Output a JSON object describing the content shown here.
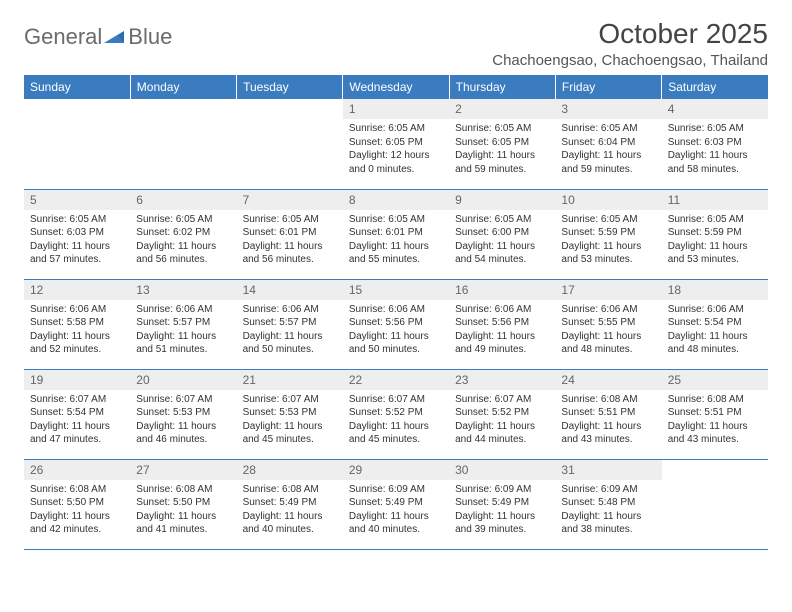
{
  "logo": {
    "text1": "General",
    "text2": "Blue"
  },
  "title": "October 2025",
  "location": "Chachoengsao, Chachoengsao, Thailand",
  "colors": {
    "header_bg": "#3b7bbf",
    "header_text": "#ffffff",
    "daynum_bg": "#eeeeee",
    "daynum_text": "#666666",
    "body_text": "#333333",
    "row_border": "#3b7bbf",
    "page_bg": "#ffffff"
  },
  "weekdays": [
    "Sunday",
    "Monday",
    "Tuesday",
    "Wednesday",
    "Thursday",
    "Friday",
    "Saturday"
  ],
  "weeks": [
    [
      {
        "empty": true
      },
      {
        "empty": true
      },
      {
        "empty": true
      },
      {
        "n": "1",
        "sunrise": "6:05 AM",
        "sunset": "6:05 PM",
        "dl1": "Daylight: 12 hours",
        "dl2": "and 0 minutes."
      },
      {
        "n": "2",
        "sunrise": "6:05 AM",
        "sunset": "6:05 PM",
        "dl1": "Daylight: 11 hours",
        "dl2": "and 59 minutes."
      },
      {
        "n": "3",
        "sunrise": "6:05 AM",
        "sunset": "6:04 PM",
        "dl1": "Daylight: 11 hours",
        "dl2": "and 59 minutes."
      },
      {
        "n": "4",
        "sunrise": "6:05 AM",
        "sunset": "6:03 PM",
        "dl1": "Daylight: 11 hours",
        "dl2": "and 58 minutes."
      }
    ],
    [
      {
        "n": "5",
        "sunrise": "6:05 AM",
        "sunset": "6:03 PM",
        "dl1": "Daylight: 11 hours",
        "dl2": "and 57 minutes."
      },
      {
        "n": "6",
        "sunrise": "6:05 AM",
        "sunset": "6:02 PM",
        "dl1": "Daylight: 11 hours",
        "dl2": "and 56 minutes."
      },
      {
        "n": "7",
        "sunrise": "6:05 AM",
        "sunset": "6:01 PM",
        "dl1": "Daylight: 11 hours",
        "dl2": "and 56 minutes."
      },
      {
        "n": "8",
        "sunrise": "6:05 AM",
        "sunset": "6:01 PM",
        "dl1": "Daylight: 11 hours",
        "dl2": "and 55 minutes."
      },
      {
        "n": "9",
        "sunrise": "6:05 AM",
        "sunset": "6:00 PM",
        "dl1": "Daylight: 11 hours",
        "dl2": "and 54 minutes."
      },
      {
        "n": "10",
        "sunrise": "6:05 AM",
        "sunset": "5:59 PM",
        "dl1": "Daylight: 11 hours",
        "dl2": "and 53 minutes."
      },
      {
        "n": "11",
        "sunrise": "6:05 AM",
        "sunset": "5:59 PM",
        "dl1": "Daylight: 11 hours",
        "dl2": "and 53 minutes."
      }
    ],
    [
      {
        "n": "12",
        "sunrise": "6:06 AM",
        "sunset": "5:58 PM",
        "dl1": "Daylight: 11 hours",
        "dl2": "and 52 minutes."
      },
      {
        "n": "13",
        "sunrise": "6:06 AM",
        "sunset": "5:57 PM",
        "dl1": "Daylight: 11 hours",
        "dl2": "and 51 minutes."
      },
      {
        "n": "14",
        "sunrise": "6:06 AM",
        "sunset": "5:57 PM",
        "dl1": "Daylight: 11 hours",
        "dl2": "and 50 minutes."
      },
      {
        "n": "15",
        "sunrise": "6:06 AM",
        "sunset": "5:56 PM",
        "dl1": "Daylight: 11 hours",
        "dl2": "and 50 minutes."
      },
      {
        "n": "16",
        "sunrise": "6:06 AM",
        "sunset": "5:56 PM",
        "dl1": "Daylight: 11 hours",
        "dl2": "and 49 minutes."
      },
      {
        "n": "17",
        "sunrise": "6:06 AM",
        "sunset": "5:55 PM",
        "dl1": "Daylight: 11 hours",
        "dl2": "and 48 minutes."
      },
      {
        "n": "18",
        "sunrise": "6:06 AM",
        "sunset": "5:54 PM",
        "dl1": "Daylight: 11 hours",
        "dl2": "and 48 minutes."
      }
    ],
    [
      {
        "n": "19",
        "sunrise": "6:07 AM",
        "sunset": "5:54 PM",
        "dl1": "Daylight: 11 hours",
        "dl2": "and 47 minutes."
      },
      {
        "n": "20",
        "sunrise": "6:07 AM",
        "sunset": "5:53 PM",
        "dl1": "Daylight: 11 hours",
        "dl2": "and 46 minutes."
      },
      {
        "n": "21",
        "sunrise": "6:07 AM",
        "sunset": "5:53 PM",
        "dl1": "Daylight: 11 hours",
        "dl2": "and 45 minutes."
      },
      {
        "n": "22",
        "sunrise": "6:07 AM",
        "sunset": "5:52 PM",
        "dl1": "Daylight: 11 hours",
        "dl2": "and 45 minutes."
      },
      {
        "n": "23",
        "sunrise": "6:07 AM",
        "sunset": "5:52 PM",
        "dl1": "Daylight: 11 hours",
        "dl2": "and 44 minutes."
      },
      {
        "n": "24",
        "sunrise": "6:08 AM",
        "sunset": "5:51 PM",
        "dl1": "Daylight: 11 hours",
        "dl2": "and 43 minutes."
      },
      {
        "n": "25",
        "sunrise": "6:08 AM",
        "sunset": "5:51 PM",
        "dl1": "Daylight: 11 hours",
        "dl2": "and 43 minutes."
      }
    ],
    [
      {
        "n": "26",
        "sunrise": "6:08 AM",
        "sunset": "5:50 PM",
        "dl1": "Daylight: 11 hours",
        "dl2": "and 42 minutes."
      },
      {
        "n": "27",
        "sunrise": "6:08 AM",
        "sunset": "5:50 PM",
        "dl1": "Daylight: 11 hours",
        "dl2": "and 41 minutes."
      },
      {
        "n": "28",
        "sunrise": "6:08 AM",
        "sunset": "5:49 PM",
        "dl1": "Daylight: 11 hours",
        "dl2": "and 40 minutes."
      },
      {
        "n": "29",
        "sunrise": "6:09 AM",
        "sunset": "5:49 PM",
        "dl1": "Daylight: 11 hours",
        "dl2": "and 40 minutes."
      },
      {
        "n": "30",
        "sunrise": "6:09 AM",
        "sunset": "5:49 PM",
        "dl1": "Daylight: 11 hours",
        "dl2": "and 39 minutes."
      },
      {
        "n": "31",
        "sunrise": "6:09 AM",
        "sunset": "5:48 PM",
        "dl1": "Daylight: 11 hours",
        "dl2": "and 38 minutes."
      },
      {
        "empty": true
      }
    ]
  ],
  "labels": {
    "sunrise": "Sunrise: ",
    "sunset": "Sunset: "
  }
}
